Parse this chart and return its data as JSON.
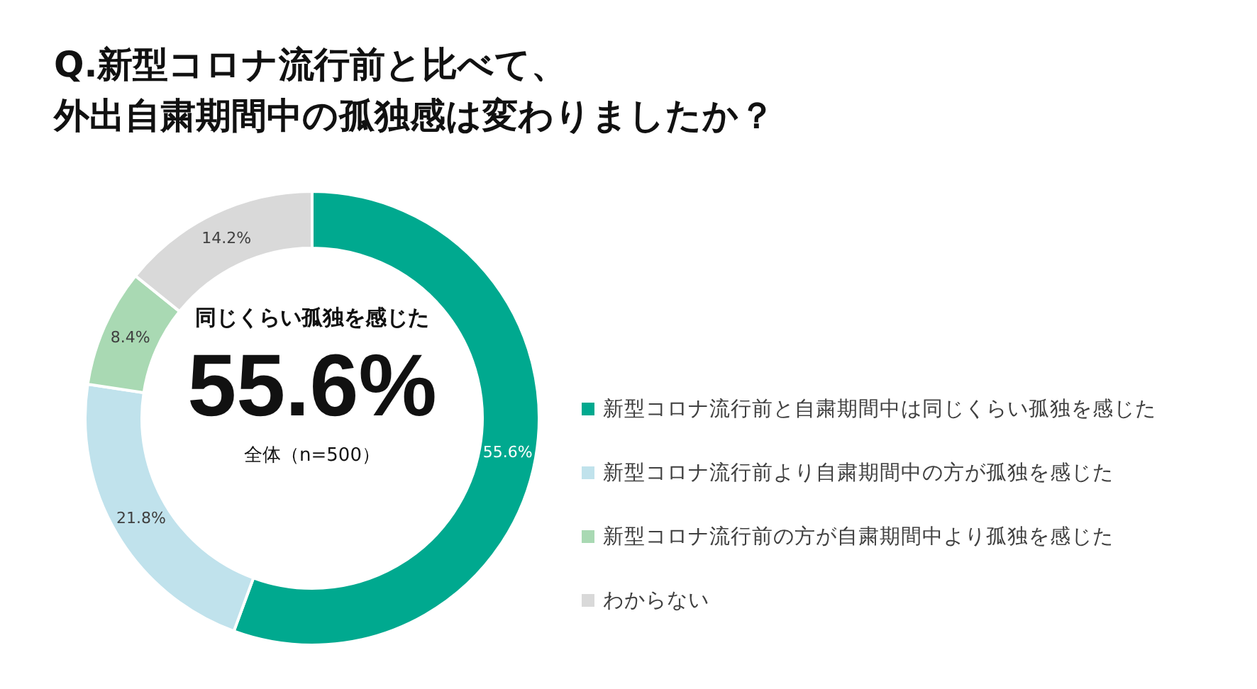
{
  "chart_data": {
    "type": "donut",
    "title": "Q.新型コロナ流行前と比べて、",
    "subtitle": "外出自粛期間中の孤独感は変わりましたか？",
    "categories": [
      "新型コロナ流行前と自粛期間中は同じくらい孤独を感じた",
      "新型コロナ流行前より自粛期間中の方が孤独を感じた",
      "新型コロナ流行前の方が自粛期間中より孤独を感じた",
      "わからない"
    ],
    "values": [
      55.6,
      21.8,
      8.4,
      14.2
    ],
    "colors": [
      "#00a98f",
      "#c0e2ec",
      "#a9d9b3",
      "#d9d9d9"
    ],
    "value_labels": [
      "55.6%",
      "21.8%",
      "8.4%",
      "14.2%"
    ],
    "annotations": [
      "同じくらい孤独を感じた",
      "55.6%",
      "全体（n=500）"
    ],
    "legend": "right"
  }
}
